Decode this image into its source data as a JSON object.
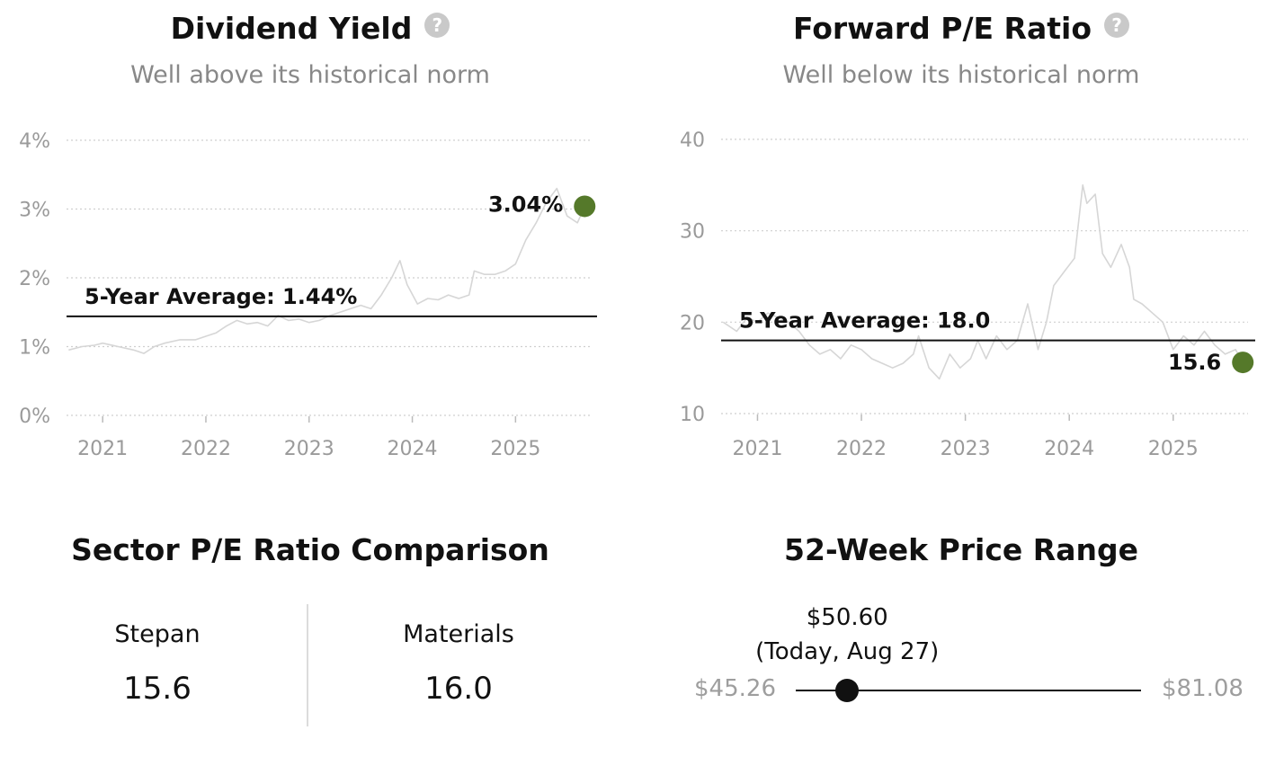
{
  "dividend": {
    "title": "Dividend Yield",
    "help_icon": "question-circle-icon",
    "subtitle": "Well above its historical norm"
  },
  "pe": {
    "title": "Forward P/E Ratio",
    "help_icon": "question-circle-icon",
    "subtitle": "Well below its historical norm"
  },
  "sector": {
    "title": "Sector P/E Ratio Comparison",
    "company_label": "Stepan",
    "company_value": "15.6",
    "sector_label": "Materials",
    "sector_value": "16.0"
  },
  "range": {
    "title": "52-Week Price Range",
    "current_price": "$50.60",
    "current_note": "(Today, Aug 27)",
    "low": "$45.26",
    "high": "$81.08",
    "low_value": 45.26,
    "high_value": 81.08,
    "current_value": 50.6,
    "dot_color": "#111111"
  },
  "chart_data": [
    {
      "type": "line",
      "title": "Dividend Yield",
      "subtitle": "Well above its historical norm",
      "x_ticks": [
        "2021",
        "2022",
        "2023",
        "2024",
        "2025"
      ],
      "y_ticks": [
        "0%",
        "1%",
        "2%",
        "3%",
        "4%"
      ],
      "ylim": [
        0,
        4
      ],
      "xlim": [
        2020.65,
        2025.72
      ],
      "grid": true,
      "series": [
        {
          "color": "#d6d6d6",
          "x": [
            2020.67,
            2020.8,
            2020.92,
            2021.0,
            2021.15,
            2021.3,
            2021.4,
            2021.5,
            2021.6,
            2021.75,
            2021.9,
            2022.0,
            2022.1,
            2022.2,
            2022.3,
            2022.4,
            2022.5,
            2022.6,
            2022.7,
            2022.8,
            2022.9,
            2023.0,
            2023.1,
            2023.2,
            2023.3,
            2023.4,
            2023.5,
            2023.6,
            2023.7,
            2023.8,
            2023.88,
            2023.95,
            2024.05,
            2024.15,
            2024.25,
            2024.35,
            2024.45,
            2024.55,
            2024.6,
            2024.7,
            2024.8,
            2024.9,
            2025.0,
            2025.1,
            2025.2,
            2025.3,
            2025.4,
            2025.5,
            2025.6,
            2025.67
          ],
          "values": [
            0.95,
            1.0,
            1.02,
            1.05,
            1.0,
            0.95,
            0.9,
            1.0,
            1.05,
            1.1,
            1.1,
            1.15,
            1.2,
            1.3,
            1.38,
            1.33,
            1.35,
            1.3,
            1.45,
            1.38,
            1.4,
            1.35,
            1.38,
            1.45,
            1.5,
            1.55,
            1.6,
            1.55,
            1.75,
            2.0,
            2.25,
            1.9,
            1.62,
            1.7,
            1.68,
            1.75,
            1.7,
            1.75,
            2.1,
            2.05,
            2.05,
            2.1,
            2.2,
            2.55,
            2.8,
            3.1,
            3.3,
            2.9,
            2.8,
            3.04
          ]
        }
      ],
      "reference_line": {
        "label": "5-Year Average: 1.44%",
        "value": 1.44
      },
      "latest": {
        "label": "3.04%",
        "value": 3.04,
        "color": "#55792a"
      }
    },
    {
      "type": "line",
      "title": "Forward P/E Ratio",
      "subtitle": "Well below its historical norm",
      "x_ticks": [
        "2021",
        "2022",
        "2023",
        "2024",
        "2025"
      ],
      "y_ticks": [
        "10",
        "20",
        "30",
        "40"
      ],
      "ylim": [
        10,
        40
      ],
      "xlim": [
        2020.65,
        2025.72
      ],
      "grid": true,
      "series": [
        {
          "color": "#d6d6d6",
          "x": [
            2020.67,
            2020.8,
            2020.9,
            2021.0,
            2021.1,
            2021.2,
            2021.3,
            2021.4,
            2021.5,
            2021.6,
            2021.7,
            2021.8,
            2021.9,
            2022.0,
            2022.1,
            2022.2,
            2022.3,
            2022.4,
            2022.5,
            2022.55,
            2022.65,
            2022.75,
            2022.85,
            2022.95,
            2023.05,
            2023.12,
            2023.2,
            2023.3,
            2023.4,
            2023.5,
            2023.6,
            2023.65,
            2023.7,
            2023.78,
            2023.85,
            2023.95,
            2024.05,
            2024.13,
            2024.17,
            2024.25,
            2024.32,
            2024.4,
            2024.5,
            2024.58,
            2024.62,
            2024.7,
            2024.8,
            2024.9,
            2025.0,
            2025.1,
            2025.2,
            2025.3,
            2025.4,
            2025.5,
            2025.6,
            2025.67
          ],
          "values": [
            20.0,
            19.0,
            20.5,
            20.0,
            21.0,
            20.5,
            20.0,
            19.0,
            17.5,
            16.5,
            17.0,
            16.0,
            17.5,
            17.0,
            16.0,
            15.5,
            15.0,
            15.5,
            16.5,
            18.5,
            15.0,
            13.8,
            16.5,
            15.0,
            16.0,
            18.0,
            16.0,
            18.5,
            17.0,
            18.0,
            22.0,
            19.5,
            17.0,
            20.0,
            24.0,
            25.5,
            27.0,
            35.0,
            33.0,
            34.0,
            27.5,
            26.0,
            28.5,
            26.0,
            22.5,
            22.0,
            21.0,
            20.0,
            17.0,
            18.5,
            17.5,
            19.0,
            17.5,
            16.5,
            17.0,
            15.6
          ]
        }
      ],
      "reference_line": {
        "label": "5-Year Average: 18.0",
        "value": 18.0
      },
      "latest": {
        "label": "15.6",
        "value": 15.6,
        "color": "#55792a"
      }
    }
  ]
}
